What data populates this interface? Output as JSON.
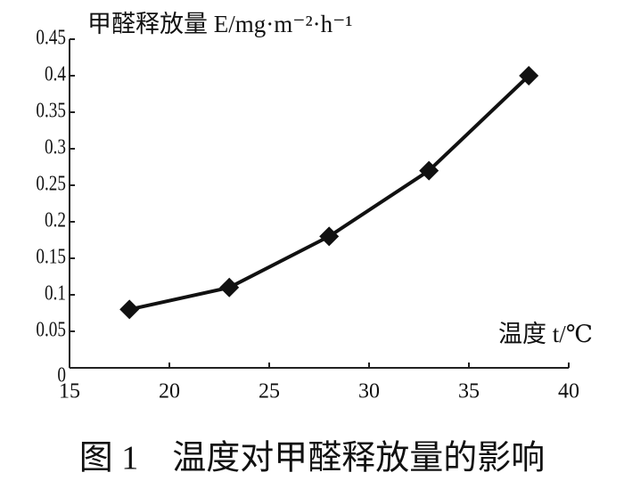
{
  "chart_data": {
    "type": "line",
    "title": "图 1　温度对甲醛释放量的影响",
    "y_label": "甲醛释放量 E/mg·m⁻²·h⁻¹",
    "x_label": "温度 t/℃",
    "x": [
      18,
      23,
      28,
      33,
      38
    ],
    "values": [
      0.08,
      0.11,
      0.18,
      0.27,
      0.4
    ],
    "color": "#111111",
    "xlim": [
      15,
      40
    ],
    "xticks": [
      15,
      20,
      25,
      30,
      35,
      40
    ],
    "ylim": [
      0,
      0.45
    ],
    "yticks": [
      0,
      0.05,
      0.1,
      0.15,
      0.2,
      0.25,
      0.3,
      0.35,
      0.4,
      0.45
    ]
  }
}
